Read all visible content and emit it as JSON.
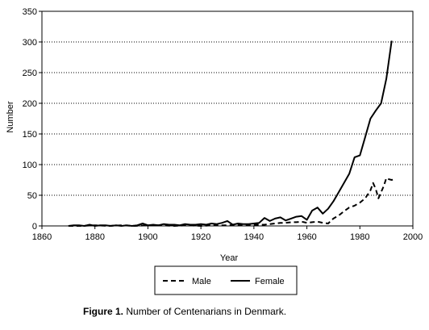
{
  "chart_data": {
    "type": "line",
    "title": "",
    "xlabel": "Year",
    "ylabel": "Number",
    "xlim": [
      1860,
      2000
    ],
    "ylim": [
      0,
      350
    ],
    "xticks": [
      1860,
      1880,
      1900,
      1920,
      1940,
      1960,
      1980,
      2000
    ],
    "yticks": [
      0,
      50,
      100,
      150,
      200,
      250,
      300,
      350
    ],
    "xtick_labels": [
      "1860",
      "1880",
      "1900",
      "1920",
      "1940",
      "1960",
      "1980",
      "2000"
    ],
    "ytick_labels": [
      "0",
      "50",
      "100",
      "150",
      "200",
      "250",
      "300",
      "350"
    ],
    "grid": "horizontal dotted",
    "legend_position": "bottom",
    "series": [
      {
        "name": "Male",
        "style": "dashed",
        "color": "#000000",
        "x": [
          1870,
          1875,
          1880,
          1885,
          1890,
          1895,
          1900,
          1905,
          1910,
          1915,
          1920,
          1925,
          1930,
          1935,
          1940,
          1944,
          1946,
          1948,
          1950,
          1952,
          1954,
          1956,
          1958,
          1960,
          1962,
          1964,
          1966,
          1968,
          1970,
          1972,
          1974,
          1976,
          1978,
          1980,
          1982,
          1984,
          1985,
          1986,
          1987,
          1988,
          1989,
          1990,
          1991,
          1992,
          1993
        ],
        "values": [
          0,
          0,
          1,
          0,
          1,
          0,
          1,
          1,
          0,
          1,
          0,
          1,
          1,
          2,
          2,
          2,
          3,
          4,
          5,
          5,
          6,
          6,
          7,
          5,
          6,
          7,
          5,
          4,
          12,
          17,
          24,
          30,
          33,
          38,
          45,
          58,
          70,
          60,
          45,
          55,
          65,
          78,
          76,
          75,
          76
        ]
      },
      {
        "name": "Female",
        "style": "solid",
        "color": "#000000",
        "x": [
          1870,
          1872,
          1874,
          1876,
          1878,
          1880,
          1882,
          1884,
          1886,
          1888,
          1890,
          1892,
          1894,
          1896,
          1898,
          1900,
          1902,
          1904,
          1906,
          1908,
          1910,
          1912,
          1914,
          1916,
          1918,
          1920,
          1922,
          1924,
          1926,
          1928,
          1930,
          1932,
          1934,
          1936,
          1938,
          1940,
          1942,
          1944,
          1946,
          1948,
          1950,
          1952,
          1954,
          1956,
          1958,
          1960,
          1962,
          1964,
          1966,
          1968,
          1970,
          1972,
          1974,
          1976,
          1978,
          1980,
          1982,
          1984,
          1986,
          1988,
          1990,
          1992
        ],
        "values": [
          0,
          1,
          1,
          0,
          2,
          0,
          1,
          1,
          0,
          1,
          0,
          1,
          0,
          1,
          4,
          1,
          2,
          1,
          3,
          2,
          2,
          1,
          3,
          2,
          2,
          3,
          2,
          4,
          3,
          5,
          8,
          2,
          4,
          3,
          3,
          4,
          5,
          13,
          8,
          12,
          14,
          9,
          12,
          15,
          16,
          10,
          25,
          30,
          20,
          28,
          40,
          55,
          70,
          85,
          112,
          115,
          145,
          175,
          188,
          200,
          240,
          302
        ]
      }
    ]
  },
  "legend": {
    "male_label": "Male",
    "female_label": "Female"
  },
  "caption": {
    "figure_label": "Figure 1.",
    "text": "Number of Centenarians in Denmark."
  }
}
